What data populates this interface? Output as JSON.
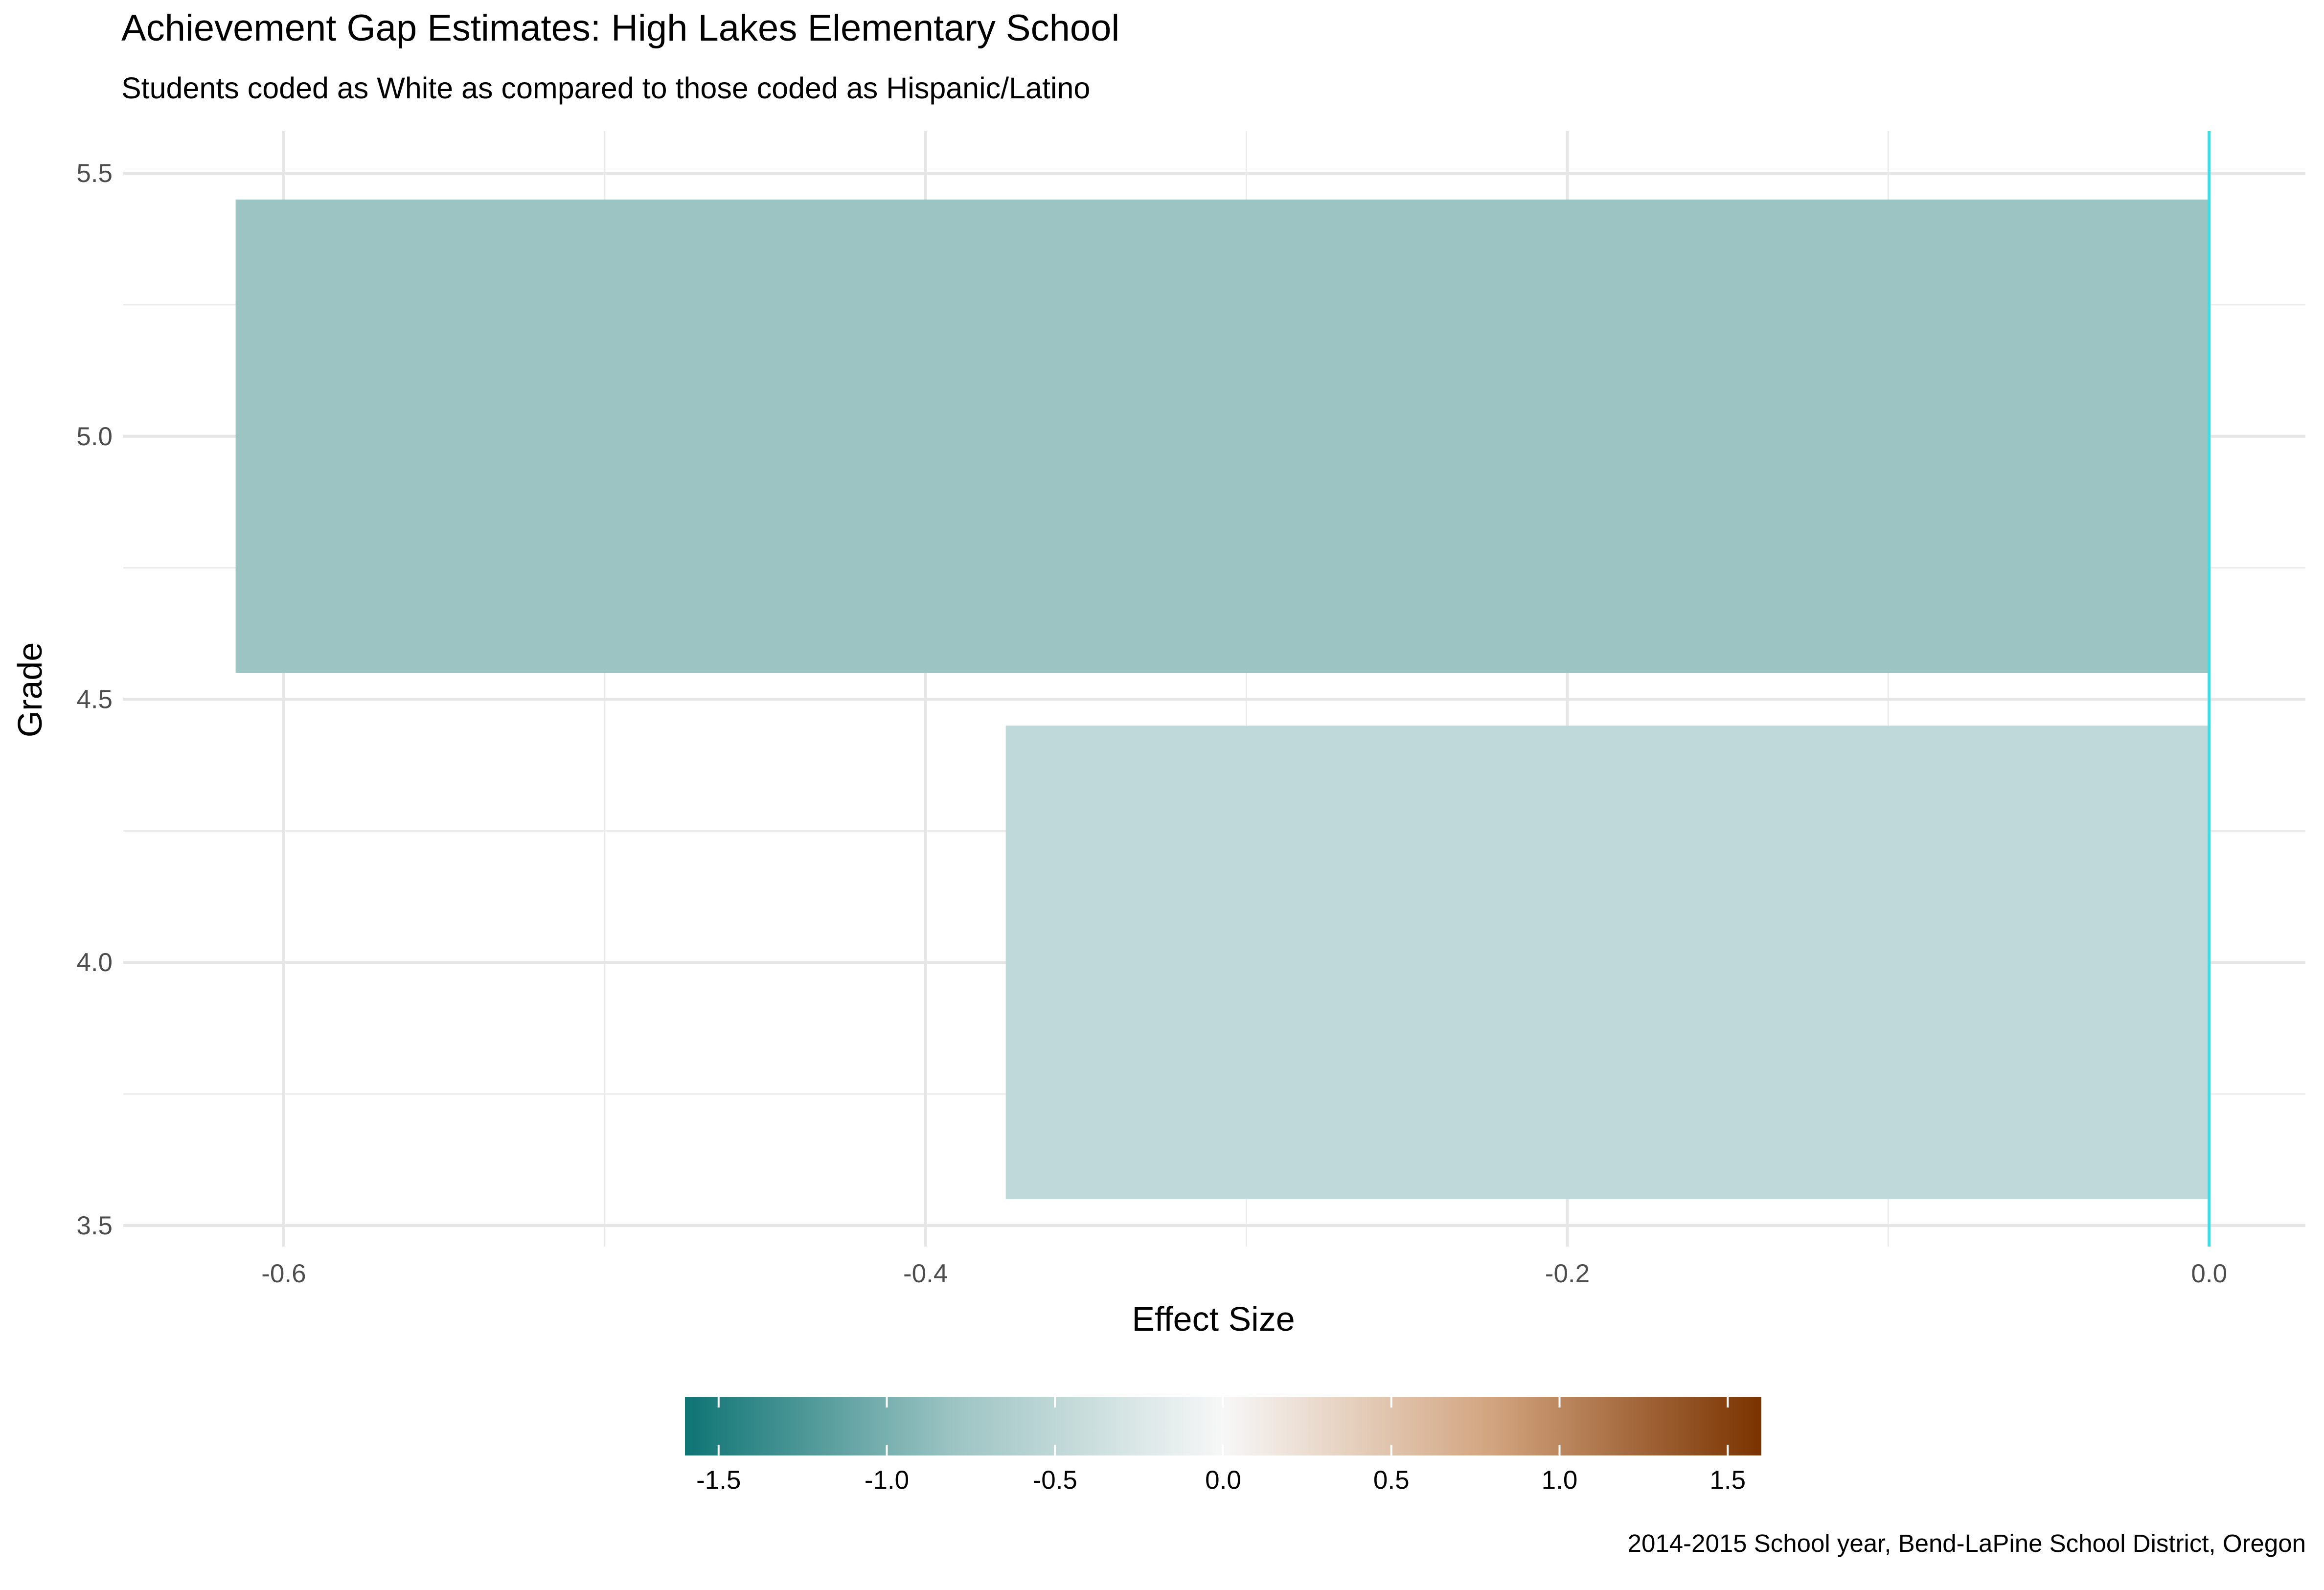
{
  "chart_data": {
    "type": "bar",
    "orientation": "horizontal",
    "title": "Achievement Gap Estimates: High Lakes Elementary School",
    "subtitle": "Students coded as White as compared to those coded as Hispanic/Latino",
    "xlabel": "Effect Size",
    "ylabel": "Grade",
    "caption": "2014-2015 School year, Bend-LaPine School District, Oregon",
    "categories": [
      4,
      5
    ],
    "values": [
      -0.375,
      -0.615
    ],
    "bar_colors": [
      "#bfd9da",
      "#9cc4c3"
    ],
    "xlim": [
      -0.65,
      0.03
    ],
    "ylim": [
      3.5,
      5.55
    ],
    "x_ticks": [
      -0.6,
      -0.4,
      -0.2,
      0.0
    ],
    "x_tick_labels": [
      "-0.6",
      "-0.4",
      "-0.2",
      "0.0"
    ],
    "y_ticks": [
      3.5,
      4.0,
      4.5,
      5.0,
      5.5
    ],
    "y_tick_labels": [
      "3.5",
      "4.0",
      "4.5",
      "5.0",
      "5.5"
    ],
    "reference_line": {
      "x": 0,
      "color": "#3cdde6"
    },
    "grid": true,
    "legend": {
      "position": "bottom",
      "type": "colorbar",
      "range": [
        -1.6,
        1.6
      ],
      "ticks": [
        -1.5,
        -1.0,
        -0.5,
        0.0,
        0.5,
        1.0,
        1.5
      ],
      "tick_labels": [
        "-1.5",
        "-1.0",
        "-0.5",
        "0.0",
        "0.5",
        "1.0",
        "1.5"
      ],
      "colors": [
        "#0e7474",
        "#9cc4c3",
        "#f7f7f7",
        "#d2a47f",
        "#7a3300"
      ]
    }
  }
}
